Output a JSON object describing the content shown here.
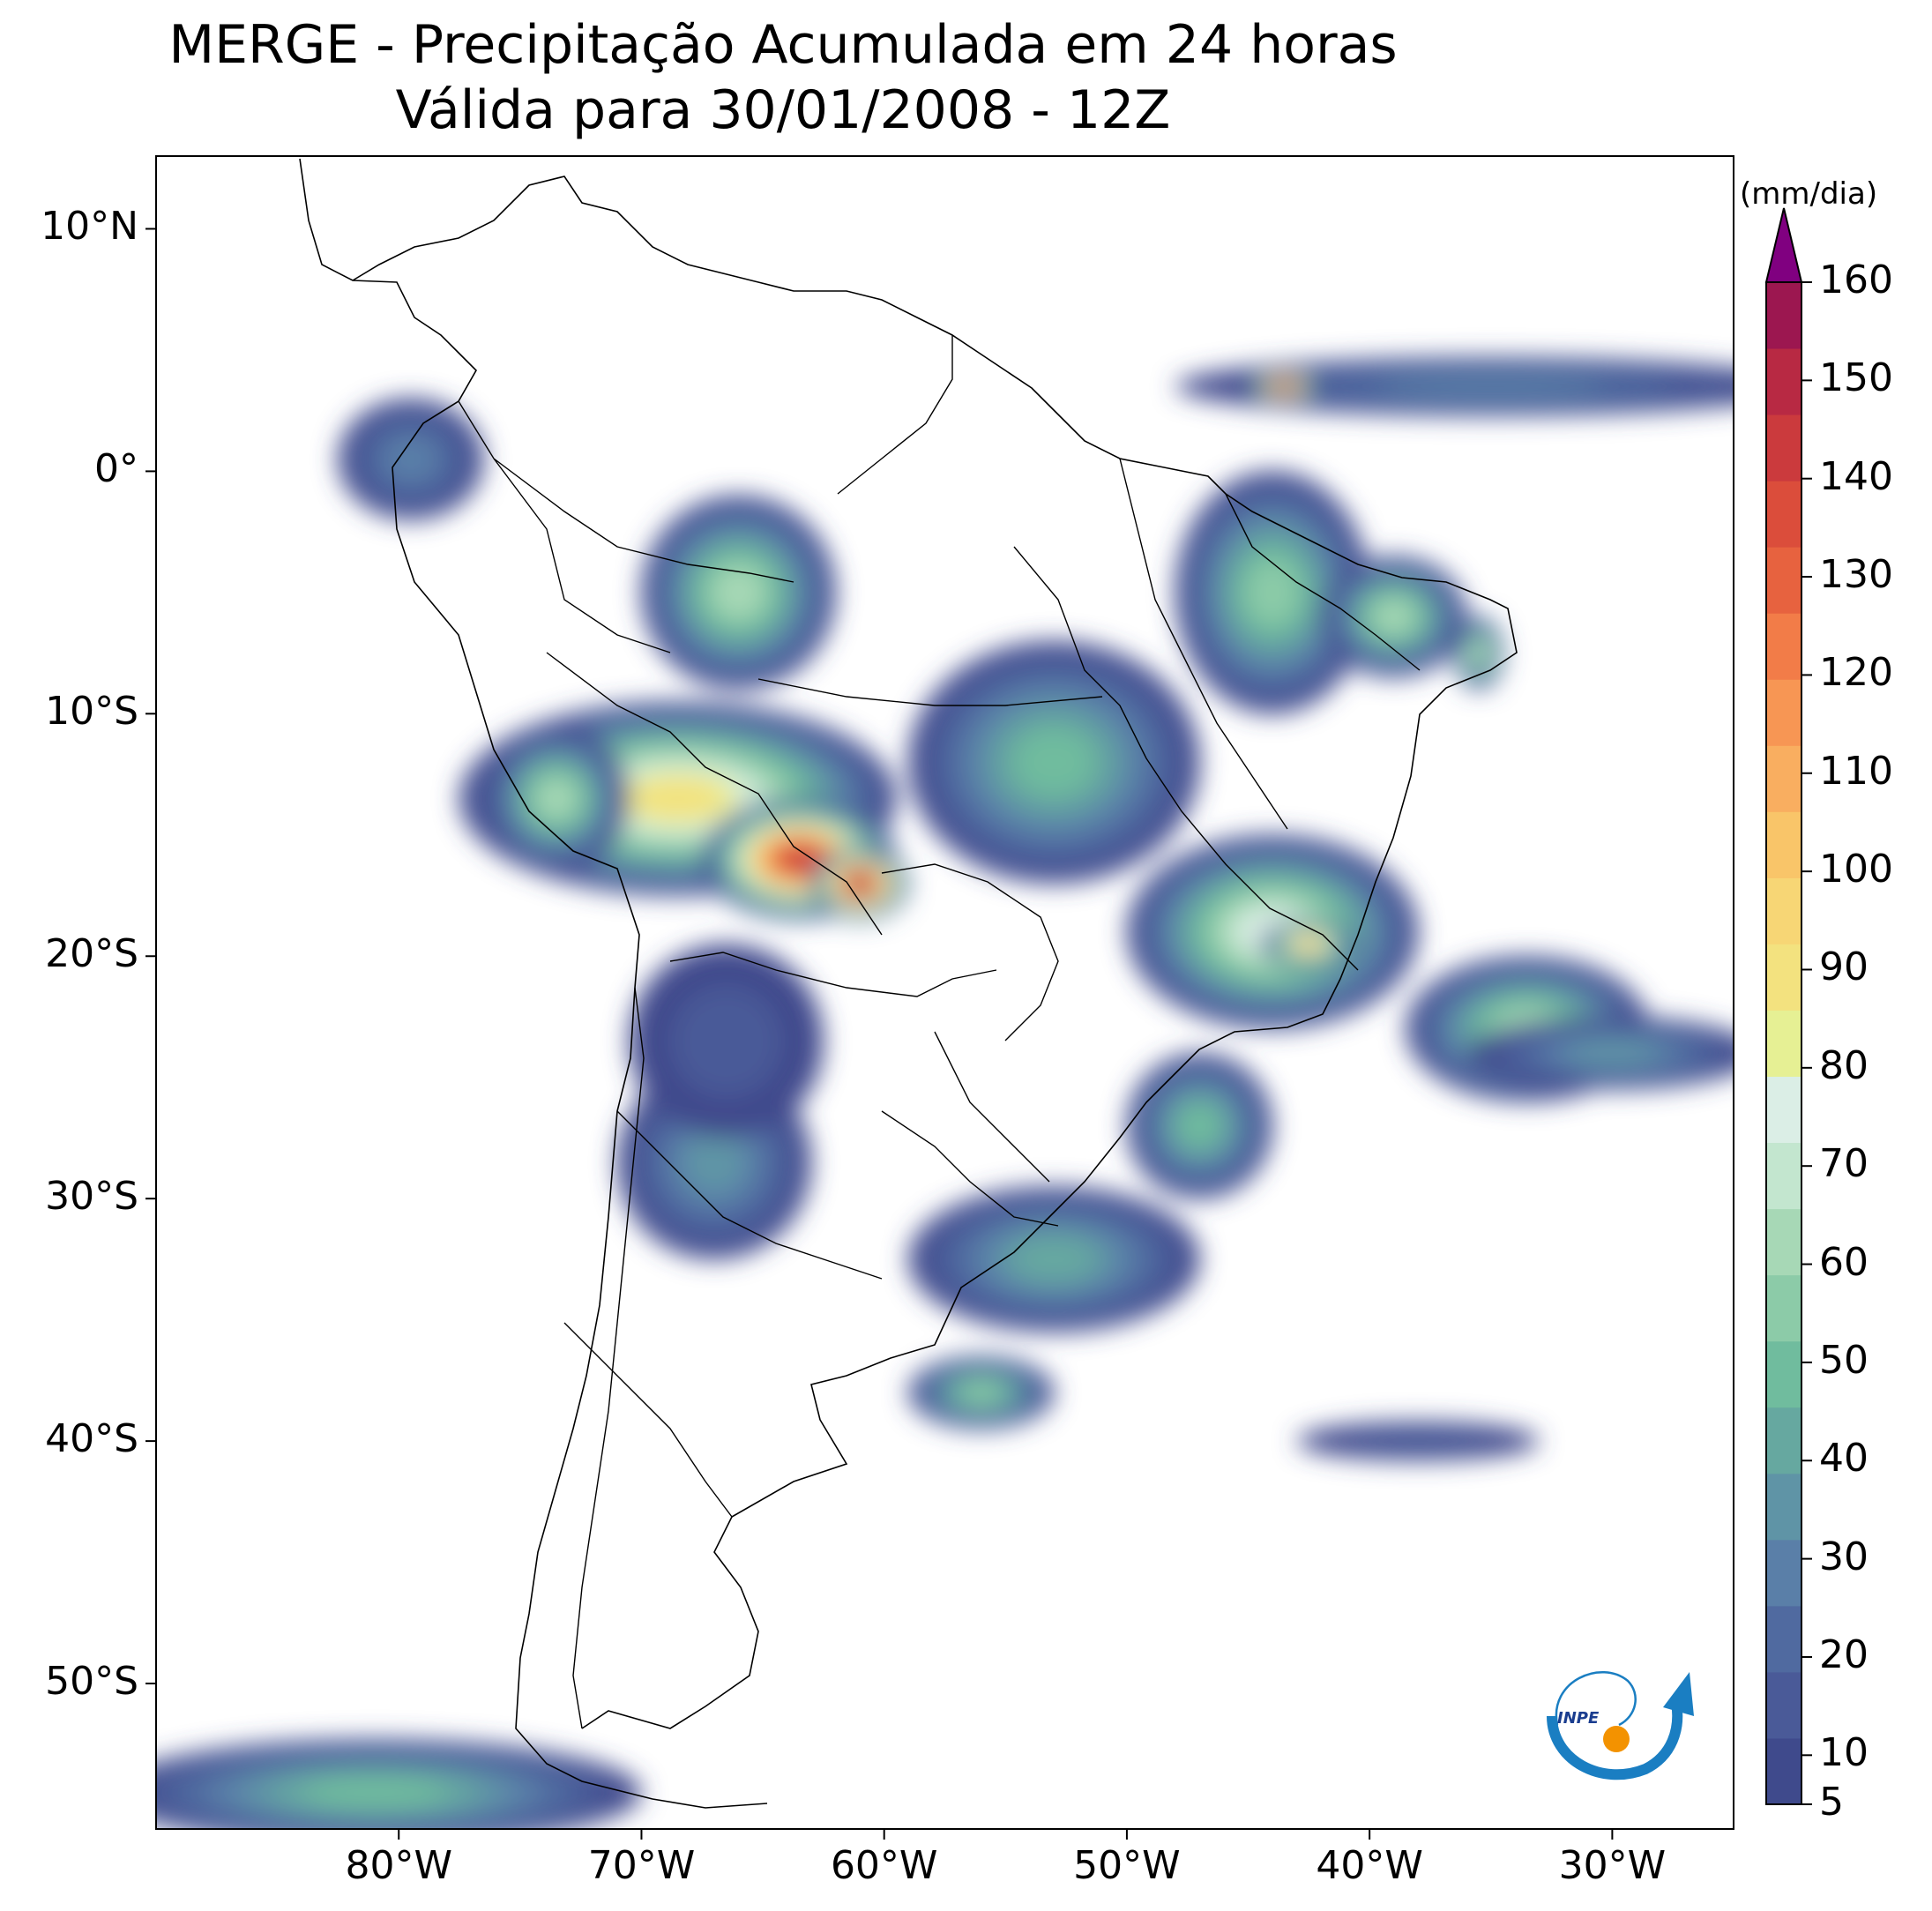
{
  "title": {
    "line1": "MERGE - Precipitação Acumulada em 24 horas",
    "line2": "Válida para 30/01/2008 - 12Z"
  },
  "map": {
    "lon_range": [
      -90,
      -25
    ],
    "lat_range": [
      -56,
      13
    ],
    "lon_ticks": [
      {
        "value": -80,
        "label": "80°W"
      },
      {
        "value": -70,
        "label": "70°W"
      },
      {
        "value": -60,
        "label": "60°W"
      },
      {
        "value": -50,
        "label": "50°W"
      },
      {
        "value": -40,
        "label": "40°W"
      },
      {
        "value": -30,
        "label": "30°W"
      }
    ],
    "lat_ticks": [
      {
        "value": 10,
        "label": "10°N"
      },
      {
        "value": 0,
        "label": "0°"
      },
      {
        "value": -10,
        "label": "10°S"
      },
      {
        "value": -20,
        "label": "20°S"
      },
      {
        "value": -30,
        "label": "30°S"
      },
      {
        "value": -40,
        "label": "40°S"
      },
      {
        "value": -50,
        "label": "50°S"
      }
    ]
  },
  "colorbar": {
    "units": "(mm/dia)",
    "min": 5,
    "max": 160,
    "ticks": [
      {
        "value": 5,
        "label": "5"
      },
      {
        "value": 10,
        "label": "10"
      },
      {
        "value": 20,
        "label": "20"
      },
      {
        "value": 30,
        "label": "30"
      },
      {
        "value": 40,
        "label": "40"
      },
      {
        "value": 50,
        "label": "50"
      },
      {
        "value": 60,
        "label": "60"
      },
      {
        "value": 70,
        "label": "70"
      },
      {
        "value": 80,
        "label": "80"
      },
      {
        "value": 90,
        "label": "90"
      },
      {
        "value": 100,
        "label": "100"
      },
      {
        "value": 110,
        "label": "110"
      },
      {
        "value": 120,
        "label": "120"
      },
      {
        "value": 130,
        "label": "130"
      },
      {
        "value": 140,
        "label": "140"
      },
      {
        "value": 150,
        "label": "150"
      },
      {
        "value": 160,
        "label": "160"
      }
    ],
    "colors": [
      "#3f4a8c",
      "#4a5a98",
      "#506aa0",
      "#5a7fa8",
      "#5f94a6",
      "#66a8a0",
      "#70bc9e",
      "#8ccba8",
      "#a7d8b6",
      "#c3e6cf",
      "#dbeee6",
      "#e6f094",
      "#f3e27f",
      "#f7d675",
      "#f9c569",
      "#f9ae60",
      "#f79654",
      "#f27c48",
      "#e7623f",
      "#db4d3b",
      "#cb3a3d",
      "#b82943",
      "#9c1750"
    ],
    "extend_color": "#800080"
  },
  "logo": {
    "text": "INPE",
    "colors": {
      "arc": "#1a7ec2",
      "dot": "#f39200",
      "text": "#1a3d8f"
    }
  },
  "precip_regions": [
    {
      "lon": -68.5,
      "lat": -13.5,
      "rx": 9,
      "ry": 4,
      "level": 12
    },
    {
      "lon": -63.5,
      "lat": -16.0,
      "rx": 4,
      "ry": 2.5,
      "level": 20
    },
    {
      "lon": -61.0,
      "lat": -17.0,
      "rx": 2,
      "ry": 1.5,
      "level": 23
    },
    {
      "lon": -66.0,
      "lat": -5.0,
      "rx": 4,
      "ry": 4,
      "level": 8
    },
    {
      "lon": -73.5,
      "lat": -13.5,
      "rx": 3,
      "ry": 3,
      "level": 8
    },
    {
      "lon": -67.0,
      "lat": -28.5,
      "rx": 4,
      "ry": 4,
      "level": 4
    },
    {
      "lon": -66.5,
      "lat": -23.5,
      "rx": 4,
      "ry": 4,
      "level": 1
    },
    {
      "lon": -53.0,
      "lat": -12.0,
      "rx": 6,
      "ry": 5,
      "level": 6
    },
    {
      "lon": -44.0,
      "lat": -19.0,
      "rx": 6,
      "ry": 4,
      "level": 10
    },
    {
      "lon": -42.5,
      "lat": -19.5,
      "rx": 2,
      "ry": 1,
      "level": 14
    },
    {
      "lon": -44.0,
      "lat": -5.0,
      "rx": 4,
      "ry": 5,
      "level": 7
    },
    {
      "lon": -39.0,
      "lat": -6.0,
      "rx": 3,
      "ry": 2.5,
      "level": 8
    },
    {
      "lon": -35.5,
      "lat": -7.5,
      "rx": 1,
      "ry": 1.5,
      "level": 9
    },
    {
      "lon": -33.5,
      "lat": -23.0,
      "rx": 5,
      "ry": 3,
      "level": 8
    },
    {
      "lon": -47.0,
      "lat": -27.0,
      "rx": 3,
      "ry": 3,
      "level": 6
    },
    {
      "lon": -53.0,
      "lat": -32.5,
      "rx": 6,
      "ry": 3,
      "level": 5
    },
    {
      "lon": -56.0,
      "lat": -38.0,
      "rx": 3,
      "ry": 1.5,
      "level": 7
    },
    {
      "lon": -35.0,
      "lat": 3.5,
      "rx": 13,
      "ry": 1.2,
      "level": 3
    },
    {
      "lon": -43.5,
      "lat": 3.5,
      "rx": 1.5,
      "ry": 0.5,
      "level": 20
    },
    {
      "lon": -30.0,
      "lat": -24.0,
      "rx": 6,
      "ry": 1.5,
      "level": 4
    },
    {
      "lon": -81.0,
      "lat": -54.5,
      "rx": 11,
      "ry": 2.2,
      "level": 6
    },
    {
      "lon": -79.5,
      "lat": 0.5,
      "rx": 3,
      "ry": 2.5,
      "level": 3
    },
    {
      "lon": -38.0,
      "lat": -40.0,
      "rx": 5,
      "ry": 0.8,
      "level": 1
    }
  ]
}
